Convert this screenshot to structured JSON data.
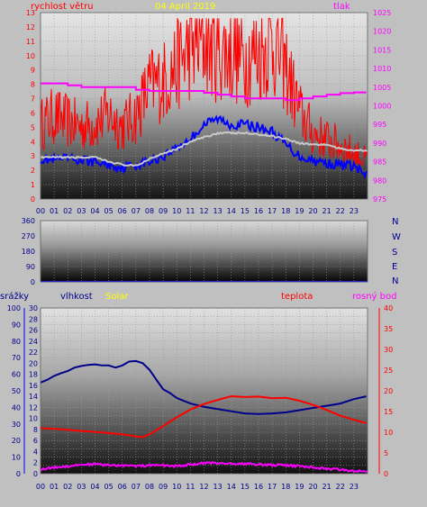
{
  "chart_data": [
    {
      "type": "line",
      "title": "04 April 2019",
      "left_axis_label": "rychlost větru",
      "right_axis_label": "tlak",
      "x_ticks": [
        "00",
        "01",
        "02",
        "03",
        "04",
        "05",
        "06",
        "07",
        "08",
        "09",
        "10",
        "11",
        "12",
        "13",
        "14",
        "15",
        "16",
        "17",
        "18",
        "19",
        "20",
        "21",
        "22",
        "23"
      ],
      "xlim": [
        0,
        24
      ],
      "ylim_left": [
        0,
        13
      ],
      "y_ticks_left": [
        "0",
        "1",
        "2",
        "3",
        "4",
        "5",
        "6",
        "7",
        "8",
        "9",
        "10",
        "11",
        "12",
        "13"
      ],
      "ylim_right": [
        975,
        1025
      ],
      "y_ticks_right": [
        "975",
        "980",
        "985",
        "990",
        "995",
        "1000",
        "1005",
        "1010",
        "1015",
        "1020",
        "1025"
      ],
      "grid": true,
      "series": [
        {
          "name": "rychlost větru",
          "color": "#ff0000",
          "axis": "left",
          "style": "gust",
          "x": [
            0,
            1,
            2,
            3,
            4,
            5,
            6,
            7,
            8,
            9,
            10,
            11,
            12,
            13,
            14,
            15,
            16,
            17,
            18,
            19,
            20,
            21,
            22,
            23,
            23.9
          ],
          "y": [
            5,
            5.6,
            5.2,
            4.9,
            5.1,
            5.7,
            4.9,
            5.6,
            7.6,
            7.9,
            9,
            10.2,
            10.6,
            10,
            9.8,
            9.5,
            9.8,
            10.6,
            8.8,
            5.9,
            4.4,
            4,
            3.6,
            3.1,
            2.6
          ]
        },
        {
          "name": "",
          "color": "#0000ff",
          "axis": "left",
          "style": "line",
          "x": [
            0,
            1,
            2,
            3,
            4,
            5,
            6,
            7,
            8,
            9,
            10,
            11,
            12,
            13,
            14,
            15,
            16,
            17,
            18,
            19,
            20,
            21,
            22,
            23,
            23.9
          ],
          "y": [
            2.8,
            2.7,
            2.8,
            2.7,
            2.6,
            2.4,
            2.2,
            2.4,
            2.6,
            3,
            3.6,
            4.2,
            5.2,
            5.6,
            5.2,
            5.2,
            5,
            4.7,
            3.8,
            3,
            2.7,
            2.5,
            2.4,
            2.3,
            1.6
          ]
        },
        {
          "name": "",
          "color": "#c8c8c8",
          "axis": "left",
          "style": "line",
          "x": [
            0,
            1,
            2,
            3,
            4,
            5,
            6,
            7,
            8,
            9,
            10,
            11,
            12,
            13,
            14,
            15,
            16,
            17,
            18,
            19,
            20,
            21,
            22,
            23,
            23.9
          ],
          "y": [
            2.9,
            2.9,
            2.9,
            2.9,
            2.9,
            2.6,
            2.4,
            2.3,
            2.8,
            3.2,
            3.5,
            4,
            4.3,
            4.6,
            4.6,
            4.6,
            4.5,
            4.4,
            4.2,
            3.9,
            3.8,
            3.8,
            3.5,
            3.4,
            3.4
          ]
        },
        {
          "name": "tlak",
          "color": "#ff00ff",
          "axis": "right",
          "style": "step",
          "x": [
            0,
            1,
            2,
            3,
            4,
            5,
            6,
            7,
            8,
            9,
            10,
            11,
            12,
            13,
            14,
            15,
            16,
            17,
            18,
            19,
            20,
            21,
            22,
            23,
            23.9
          ],
          "y": [
            1006,
            1006,
            1005.5,
            1005,
            1005,
            1005,
            1005,
            1004.3,
            1004,
            1004,
            1004,
            1004,
            1003.5,
            1003,
            1002.5,
            1002,
            1002,
            1002,
            1001.5,
            1002,
            1002.5,
            1003,
            1003.4,
            1003.6,
            1003.6
          ]
        }
      ]
    },
    {
      "type": "line",
      "title": "",
      "right_labels": [
        "N",
        "W",
        "S",
        "E",
        "N"
      ],
      "x_ticks": [],
      "xlim": [
        0,
        24
      ],
      "ylim_left": [
        0,
        360
      ],
      "y_ticks_left": [
        "0",
        "90",
        "180",
        "270",
        "360"
      ],
      "grid": true,
      "series": [
        {
          "name": "",
          "color": "#0000ff",
          "axis": "left",
          "style": "line",
          "x": [
            0,
            24
          ],
          "y": [
            2,
            2
          ]
        }
      ]
    },
    {
      "type": "line",
      "title": "",
      "labels": {
        "rain": "srážky",
        "humidity": "vlhkost",
        "solar": "Solar",
        "temperature": "teplota",
        "dewpoint": "rosný bod"
      },
      "x_ticks": [
        "00",
        "01",
        "02",
        "03",
        "04",
        "05",
        "06",
        "07",
        "08",
        "09",
        "10",
        "11",
        "12",
        "13",
        "14",
        "15",
        "16",
        "17",
        "18",
        "19",
        "20",
        "21",
        "22",
        "23"
      ],
      "xlim": [
        0,
        24
      ],
      "y_ticks_rain": [
        "0",
        "10",
        "20",
        "30",
        "40",
        "50",
        "60",
        "70",
        "80",
        "90",
        "100"
      ],
      "ylim_humidity": [
        0,
        30
      ],
      "y_ticks_humidity": [
        "0",
        "2",
        "4",
        "6",
        "8",
        "10",
        "12",
        "14",
        "16",
        "18",
        "20",
        "22",
        "24",
        "26",
        "28",
        "30"
      ],
      "ylim_temperature": [
        0,
        40
      ],
      "y_ticks_temperature": [
        "0",
        "5",
        "10",
        "15",
        "20",
        "25",
        "30",
        "35",
        "40"
      ],
      "grid": true,
      "series": [
        {
          "name": "vlhkost",
          "color": "#00008b",
          "axis": "humidity",
          "x": [
            0,
            0.5,
            1,
            1.5,
            2,
            2.5,
            3,
            3.5,
            4,
            4.5,
            5,
            5.5,
            6,
            6.5,
            7,
            7.5,
            8,
            8.5,
            9,
            9.5,
            10,
            11,
            12,
            13,
            14,
            15,
            16,
            17,
            18,
            19,
            20,
            21,
            22,
            23,
            23.9
          ],
          "y": [
            16.5,
            17,
            17.7,
            18.2,
            18.6,
            19.2,
            19.5,
            19.7,
            19.8,
            19.6,
            19.6,
            19.2,
            19.6,
            20.3,
            20.4,
            20,
            18.8,
            17,
            15.3,
            14.6,
            13.7,
            12.7,
            12.1,
            11.7,
            11.3,
            10.9,
            10.8,
            10.9,
            11.1,
            11.5,
            11.9,
            12.3,
            12.7,
            13.5,
            14
          ]
        },
        {
          "name": "teplota",
          "color": "#ff0000",
          "axis": "temperature",
          "x": [
            0,
            1,
            2,
            3,
            4,
            5,
            6,
            7,
            7.5,
            8,
            9,
            10,
            11,
            12,
            13,
            14,
            15,
            16,
            17,
            18,
            19,
            20,
            21,
            22,
            23,
            23.9
          ],
          "y": [
            11,
            10.8,
            10.6,
            10.3,
            10.1,
            9.8,
            9.5,
            9,
            8.8,
            9.5,
            11.5,
            13.6,
            15.5,
            16.8,
            17.8,
            18.7,
            18.5,
            18.6,
            18.2,
            18.3,
            17.6,
            16.6,
            15.4,
            14,
            13,
            12.2
          ]
        },
        {
          "name": "rosný bod",
          "color": "#ff00ff",
          "axis": "temperature",
          "x": [
            0,
            1,
            2,
            3,
            4,
            5,
            6,
            7,
            8,
            9,
            10,
            11,
            12,
            13,
            14,
            15,
            16,
            17,
            18,
            19,
            20,
            21,
            22,
            23,
            23.9
          ],
          "y": [
            1,
            1.5,
            1.8,
            2.2,
            2.3,
            2,
            2,
            1.8,
            2,
            2,
            1.8,
            2.2,
            2.5,
            2.6,
            2.4,
            2.4,
            2.2,
            2.1,
            2,
            1.8,
            1.5,
            1.2,
            1,
            0.7,
            0.6
          ]
        }
      ]
    }
  ]
}
